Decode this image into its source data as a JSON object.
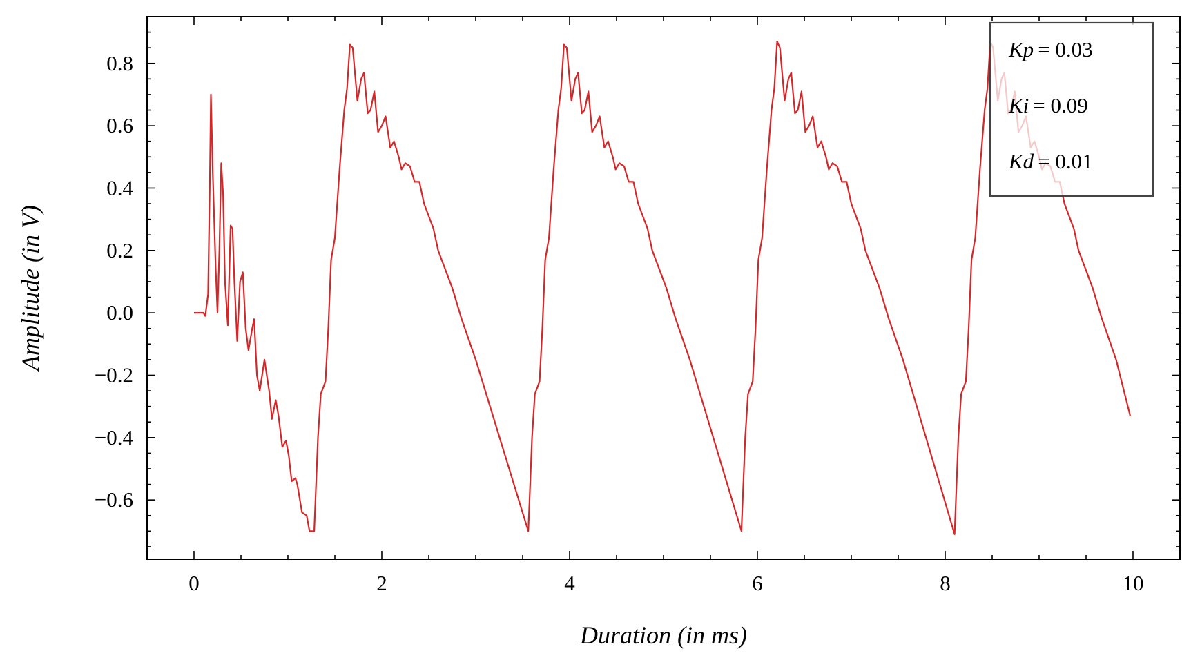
{
  "chart_data": {
    "type": "line",
    "xlabel": "Duration (in ms)",
    "ylabel": "Amplitude (in V)",
    "xlim": [
      -0.5,
      10.5
    ],
    "ylim": [
      -0.79,
      0.95
    ],
    "xticks": [
      0,
      2,
      4,
      6,
      8,
      10
    ],
    "yticks": [
      {
        "value": -0.6,
        "label": "−0.6"
      },
      {
        "value": -0.4,
        "label": "−0.4"
      },
      {
        "value": -0.2,
        "label": "−0.2"
      },
      {
        "value": 0,
        "label": "0.0"
      },
      0.2,
      0.4,
      0.6,
      0.8
    ],
    "xminorticks": [
      -0.5,
      0.5,
      1,
      1.5,
      2.5,
      3,
      3.5,
      4.5,
      5,
      5.5,
      6.5,
      7,
      7.5,
      8.5,
      9,
      9.5,
      10.5
    ],
    "yminorticks": [
      -0.75,
      -0.7,
      -0.65,
      -0.55,
      -0.5,
      -0.45,
      -0.35,
      -0.3,
      -0.25,
      -0.15,
      -0.1,
      -0.05,
      0.05,
      0.1,
      0.15,
      0.25,
      0.3,
      0.35,
      0.45,
      0.5,
      0.55,
      0.65,
      0.7,
      0.75,
      0.85,
      0.9
    ],
    "legend": [
      {
        "symbol": "Kp",
        "value": "= 0.03"
      },
      {
        "symbol": "Ki",
        "value": "= 0.09"
      },
      {
        "symbol": "Kd",
        "value": "= 0.01"
      }
    ],
    "legend_position": "upper right",
    "x": [
      0,
      0.1,
      0.12,
      0.15,
      0.17,
      0.18,
      0.2,
      0.23,
      0.25,
      0.27,
      0.29,
      0.31,
      0.33,
      0.36,
      0.39,
      0.41,
      0.43,
      0.46,
      0.49,
      0.52,
      0.55,
      0.58,
      0.62,
      0.64,
      0.67,
      0.7,
      0.75,
      0.8,
      0.83,
      0.87,
      0.9,
      0.94,
      0.98,
      1.01,
      1.04,
      1.08,
      1.1,
      1.15,
      1.2,
      1.23,
      1.28,
      1.32,
      1.35,
      1.4,
      1.43,
      1.46,
      1.5,
      1.55,
      1.6,
      1.63,
      1.66,
      1.69,
      1.74,
      1.78,
      1.81,
      1.85,
      1.88,
      1.92,
      1.96,
      2.0,
      2.04,
      2.09,
      2.13,
      2.18,
      2.21,
      2.25,
      2.3,
      2.35,
      2.4,
      2.45,
      2.5,
      2.55,
      2.6,
      2.7,
      2.75,
      2.85,
      3.0,
      3.56,
      3.6,
      3.63,
      3.68,
      3.71,
      3.74,
      3.78,
      3.83,
      3.88,
      3.91,
      3.94,
      3.97,
      4.02,
      4.06,
      4.09,
      4.13,
      4.16,
      4.2,
      4.24,
      4.28,
      4.32,
      4.37,
      4.41,
      4.46,
      4.49,
      4.53,
      4.58,
      4.63,
      4.68,
      4.73,
      4.78,
      4.83,
      4.88,
      4.98,
      5.03,
      5.13,
      5.28,
      5.83,
      5.87,
      5.9,
      5.95,
      5.98,
      6.01,
      6.05,
      6.1,
      6.15,
      6.18,
      6.21,
      6.24,
      6.29,
      6.33,
      6.36,
      6.4,
      6.43,
      6.47,
      6.51,
      6.55,
      6.59,
      6.64,
      6.68,
      6.73,
      6.76,
      6.8,
      6.85,
      6.9,
      6.95,
      7.0,
      7.05,
      7.1,
      7.15,
      7.25,
      7.3,
      7.4,
      7.55,
      8.1,
      8.14,
      8.17,
      8.22,
      8.25,
      8.28,
      8.32,
      8.37,
      8.42,
      8.45,
      8.48,
      8.51,
      8.56,
      8.6,
      8.63,
      8.67,
      8.7,
      8.74,
      8.78,
      8.82,
      8.86,
      8.91,
      8.95,
      9.0,
      9.03,
      9.07,
      9.12,
      9.17,
      9.22,
      9.27,
      9.32,
      9.37,
      9.42,
      9.52,
      9.57,
      9.67,
      9.82,
      9.97
    ],
    "series": [
      {
        "color": "#d62728",
        "values": [
          0,
          0,
          -0.01,
          0.06,
          0.45,
          0.7,
          0.45,
          0.15,
          0.0,
          0.2,
          0.48,
          0.38,
          0.1,
          -0.04,
          0.28,
          0.27,
          0.1,
          -0.09,
          0.1,
          0.13,
          -0.05,
          -0.12,
          -0.05,
          -0.02,
          -0.2,
          -0.25,
          -0.15,
          -0.25,
          -0.34,
          -0.28,
          -0.33,
          -0.43,
          -0.41,
          -0.46,
          -0.54,
          -0.53,
          -0.55,
          -0.64,
          -0.65,
          -0.7,
          -0.7,
          -0.4,
          -0.26,
          -0.22,
          -0.05,
          0.17,
          0.24,
          0.46,
          0.65,
          0.72,
          0.86,
          0.85,
          0.68,
          0.75,
          0.77,
          0.64,
          0.65,
          0.71,
          0.58,
          0.6,
          0.63,
          0.53,
          0.55,
          0.5,
          0.46,
          0.48,
          0.47,
          0.42,
          0.42,
          0.35,
          0.31,
          0.27,
          0.2,
          0.12,
          0.08,
          -0.02,
          -0.15,
          -0.7,
          -0.4,
          -0.26,
          -0.22,
          -0.05,
          0.17,
          0.24,
          0.46,
          0.65,
          0.72,
          0.86,
          0.85,
          0.68,
          0.75,
          0.77,
          0.64,
          0.65,
          0.71,
          0.58,
          0.6,
          0.63,
          0.53,
          0.55,
          0.5,
          0.46,
          0.48,
          0.47,
          0.42,
          0.42,
          0.35,
          0.31,
          0.27,
          0.2,
          0.12,
          0.08,
          -0.02,
          -0.15,
          -0.7,
          -0.4,
          -0.26,
          -0.22,
          -0.05,
          0.17,
          0.24,
          0.46,
          0.65,
          0.72,
          0.87,
          0.85,
          0.68,
          0.75,
          0.77,
          0.64,
          0.65,
          0.71,
          0.58,
          0.6,
          0.63,
          0.53,
          0.55,
          0.5,
          0.46,
          0.48,
          0.47,
          0.42,
          0.42,
          0.35,
          0.31,
          0.27,
          0.2,
          0.12,
          0.08,
          -0.02,
          -0.15,
          -0.71,
          -0.4,
          -0.26,
          -0.22,
          -0.05,
          0.17,
          0.24,
          0.46,
          0.65,
          0.72,
          0.87,
          0.85,
          0.68,
          0.75,
          0.77,
          0.64,
          0.65,
          0.71,
          0.58,
          0.6,
          0.63,
          0.53,
          0.55,
          0.5,
          0.46,
          0.48,
          0.47,
          0.42,
          0.42,
          0.35,
          0.31,
          0.27,
          0.2,
          0.12,
          0.08,
          -0.02,
          -0.15,
          -0.33
        ]
      }
    ]
  }
}
